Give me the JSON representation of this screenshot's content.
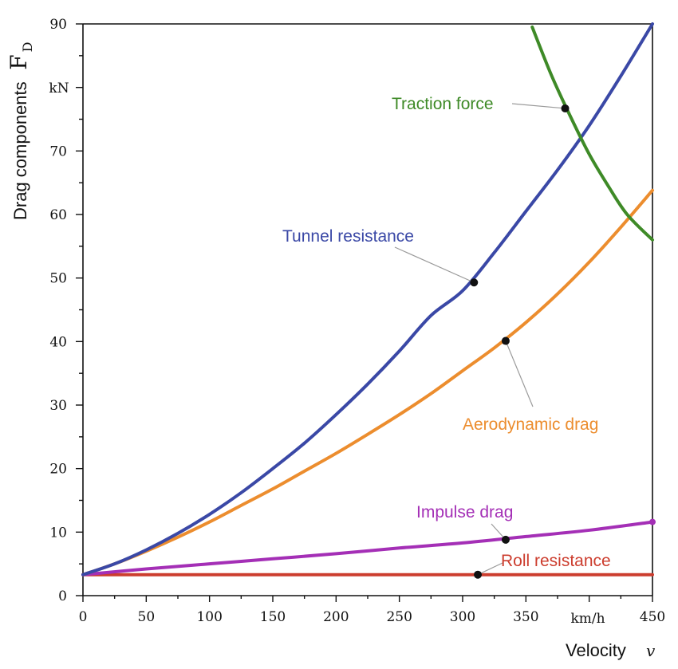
{
  "chart_data": {
    "type": "line",
    "ylabel": "Drag components",
    "ylabel_symbol": "F",
    "ylabel_subscript": "D",
    "xlabel": "Velocity",
    "xlabel_symbol": "v",
    "x_unit": "km/h",
    "y_unit": "kN",
    "xlim": [
      0,
      450
    ],
    "ylim": [
      0,
      90
    ],
    "x_ticks": [
      "0",
      "50",
      "100",
      "150",
      "200",
      "250",
      "300",
      "350",
      "450"
    ],
    "x_tick_values": [
      0,
      50,
      100,
      150,
      200,
      250,
      300,
      350,
      450
    ],
    "y_ticks": [
      "0",
      "10",
      "20",
      "30",
      "40",
      "50",
      "60",
      "70",
      "90"
    ],
    "y_tick_values": [
      0,
      10,
      20,
      30,
      40,
      50,
      60,
      70,
      90
    ],
    "grid": false,
    "series": [
      {
        "name": "Tunnel resistance",
        "color": "#3a48a6",
        "x": [
          0,
          25,
          50,
          75,
          100,
          125,
          150,
          175,
          200,
          225,
          250,
          275,
          300,
          325,
          350,
          375,
          400,
          425,
          450
        ],
        "values": [
          3.3,
          5.0,
          7.2,
          9.8,
          12.8,
          16.2,
          20.0,
          24.0,
          28.5,
          33.3,
          38.5,
          44.1,
          48.0,
          54.0,
          60.5,
          67.0,
          74.0,
          81.8,
          90.0
        ],
        "marker": {
          "x": 309,
          "y": 49.3
        }
      },
      {
        "name": "Aerodynamic drag",
        "color": "#ec8d2e",
        "x": [
          0,
          25,
          50,
          75,
          100,
          125,
          150,
          175,
          200,
          225,
          250,
          275,
          300,
          325,
          350,
          375,
          400,
          425,
          450
        ],
        "values": [
          3.3,
          5.0,
          7.0,
          9.2,
          11.6,
          14.2,
          16.8,
          19.6,
          22.4,
          25.4,
          28.5,
          31.8,
          35.4,
          39.0,
          43.0,
          47.5,
          52.5,
          58.0,
          63.8
        ],
        "marker": {
          "x": 334,
          "y": 40.1
        }
      },
      {
        "name": "Traction force",
        "color": "#3e8a27",
        "x": [
          355,
          370,
          385,
          400,
          415,
          430,
          450
        ],
        "values": [
          89.5,
          82.0,
          75.5,
          69.5,
          64.5,
          60.0,
          56.0
        ],
        "marker": {
          "x": 381,
          "y": 76.7
        }
      },
      {
        "name": "Impulse drag",
        "color": "#a42fb6",
        "x": [
          0,
          50,
          100,
          150,
          200,
          250,
          300,
          350,
          400,
          450
        ],
        "values": [
          3.3,
          4.2,
          5.0,
          5.8,
          6.6,
          7.5,
          8.3,
          9.3,
          10.3,
          11.6
        ],
        "marker": {
          "x": 334,
          "y": 8.8
        }
      },
      {
        "name": "Roll resistance",
        "color": "#cc3d2e",
        "x": [
          0,
          450
        ],
        "values": [
          3.3,
          3.3
        ],
        "marker": {
          "x": 312,
          "y": 3.3
        }
      }
    ]
  }
}
